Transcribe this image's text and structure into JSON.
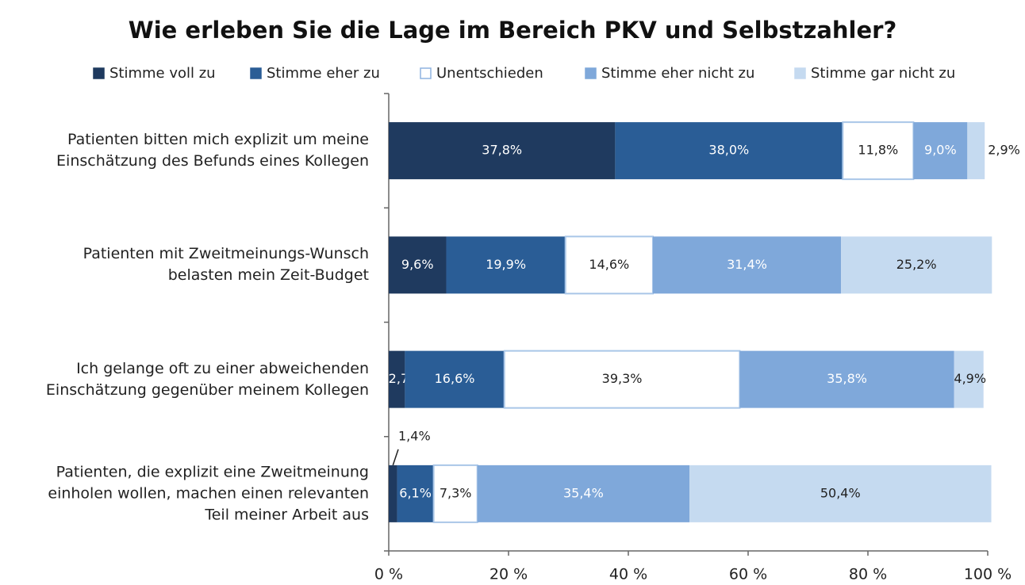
{
  "chart_data": {
    "type": "stacked-barh",
    "title": "Wie erleben Sie die Lage im Bereich PKV und Selbstzahler?",
    "categories": [
      "Patienten bitten mich explizit um meine\nEinschätzung des Befunds eines Kollegen",
      "Patienten mit Zweitmeinungs-Wunsch\nbelasten mein Zeit-Budget",
      "Ich gelange oft zu einer abweichenden\nEinschätzung gegenüber meinem Kollegen",
      "Patienten, die explizit eine Zweitmeinung\neinholen wollen, machen einen relevanten\nTeil meiner Arbeit aus"
    ],
    "series": [
      {
        "name": "Stimme voll zu",
        "color": "#1f3a5f",
        "values": [
          37.8,
          9.6,
          2.7,
          1.4
        ],
        "value_labels": [
          "37,8%",
          "9,6%",
          "2,7%",
          "1,4%"
        ]
      },
      {
        "name": "Stimme eher zu",
        "color": "#2a5d96",
        "values": [
          38.0,
          19.9,
          16.6,
          6.1
        ],
        "value_labels": [
          "38,0%",
          "19,9%",
          "16,6%",
          "6,1%"
        ]
      },
      {
        "name": "Unentschieden",
        "color": "#ffffff",
        "values": [
          11.8,
          14.6,
          39.3,
          7.3
        ],
        "value_labels": [
          "11,8%",
          "14,6%",
          "39,3%",
          "7,3%"
        ]
      },
      {
        "name": "Stimme eher nicht zu",
        "color": "#7fa8da",
        "values": [
          9.0,
          31.4,
          35.8,
          35.4
        ],
        "value_labels": [
          "9,0%",
          "31,4%",
          "35,8%",
          "35,4%"
        ]
      },
      {
        "name": "Stimme gar nicht zu",
        "color": "#c5daf0",
        "values": [
          2.9,
          25.2,
          4.9,
          50.4
        ],
        "value_labels": [
          "2,9%",
          "25,2%",
          "4,9%",
          "50,4%"
        ]
      }
    ],
    "xlim": [
      0,
      100
    ],
    "xticks": [
      {
        "value": 0,
        "label": "0 %"
      },
      {
        "value": 20,
        "label": "20 %"
      },
      {
        "value": 40,
        "label": "40 %"
      },
      {
        "value": 60,
        "label": "60 %"
      },
      {
        "value": 80,
        "label": "80 %"
      },
      {
        "value": 100,
        "label": "100 %"
      }
    ],
    "legend": "top"
  }
}
